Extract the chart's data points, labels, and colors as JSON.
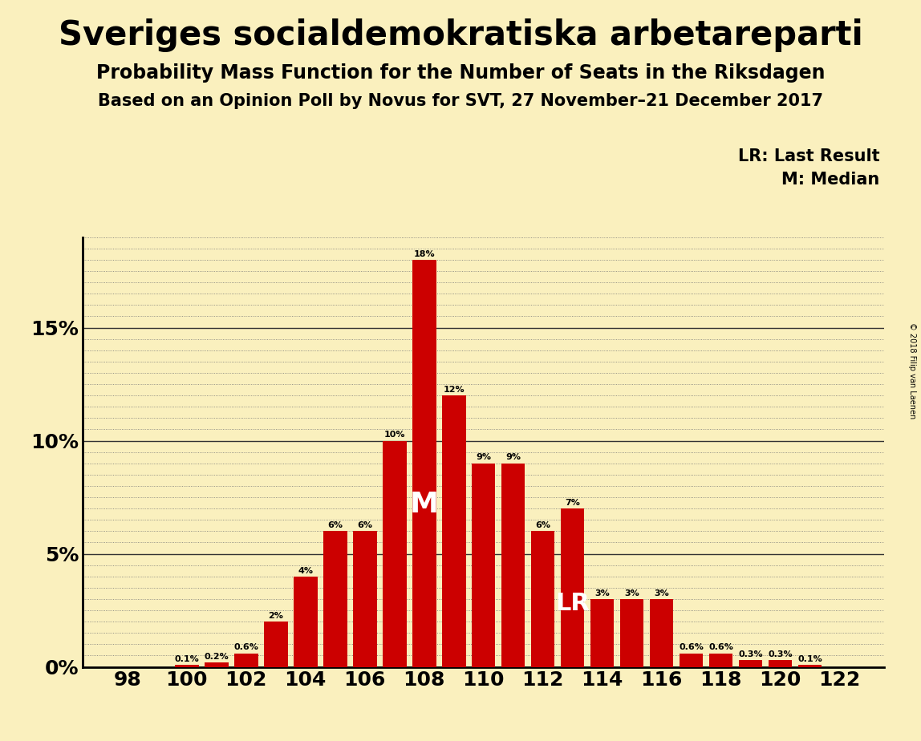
{
  "title": "Sveriges socialdemokratiska arbetareparti",
  "subtitle1": "Probability Mass Function for the Number of Seats in the Riksdagen",
  "subtitle2": "Based on an Opinion Poll by Novus for SVT, 27 November–21 December 2017",
  "copyright": "© 2018 Filip van Laenen",
  "legend_lr": "LR: Last Result",
  "legend_m": "M: Median",
  "background_color": "#FAF0BE",
  "bar_color": "#CC0000",
  "seats": [
    98,
    99,
    100,
    101,
    102,
    103,
    104,
    105,
    106,
    107,
    108,
    109,
    110,
    111,
    112,
    113,
    114,
    115,
    116,
    117,
    118,
    119,
    120,
    121,
    122
  ],
  "probabilities": [
    0.0,
    0.0,
    0.001,
    0.002,
    0.006,
    0.02,
    0.04,
    0.06,
    0.06,
    0.1,
    0.18,
    0.12,
    0.09,
    0.09,
    0.06,
    0.07,
    0.03,
    0.03,
    0.03,
    0.006,
    0.006,
    0.003,
    0.003,
    0.001,
    0.0
  ],
  "labels": [
    "0%",
    "0%",
    "0.1%",
    "0.2%",
    "0.6%",
    "2%",
    "4%",
    "6%",
    "6%",
    "10%",
    "18%",
    "12%",
    "9%",
    "9%",
    "6%",
    "7%",
    "3%",
    "3%",
    "3%",
    "0.6%",
    "0.6%",
    "0.3%",
    "0.3%",
    "0.1%",
    "0%"
  ],
  "median_seat": 108,
  "lr_seat": 113,
  "ylim": [
    0,
    0.19
  ],
  "yticks": [
    0.0,
    0.05,
    0.1,
    0.15
  ],
  "ytick_labels": [
    "0%",
    "5%",
    "10%",
    "15%"
  ],
  "xtick_positions": [
    98,
    100,
    102,
    104,
    106,
    108,
    110,
    112,
    114,
    116,
    118,
    120,
    122
  ]
}
